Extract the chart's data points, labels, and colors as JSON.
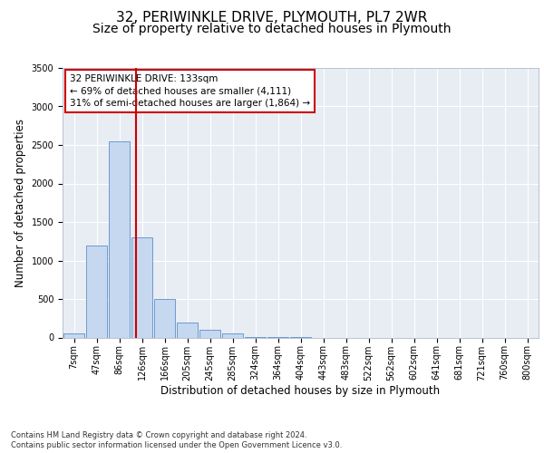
{
  "title": "32, PERIWINKLE DRIVE, PLYMOUTH, PL7 2WR",
  "subtitle": "Size of property relative to detached houses in Plymouth",
  "xlabel": "Distribution of detached houses by size in Plymouth",
  "ylabel": "Number of detached properties",
  "bar_categories": [
    "7sqm",
    "47sqm",
    "86sqm",
    "126sqm",
    "166sqm",
    "205sqm",
    "245sqm",
    "285sqm",
    "324sqm",
    "364sqm",
    "404sqm",
    "443sqm",
    "483sqm",
    "522sqm",
    "562sqm",
    "602sqm",
    "641sqm",
    "681sqm",
    "721sqm",
    "760sqm",
    "800sqm"
  ],
  "bar_values": [
    50,
    1200,
    2550,
    1300,
    500,
    200,
    100,
    50,
    5,
    5,
    5,
    0,
    0,
    0,
    0,
    0,
    0,
    0,
    0,
    0,
    0
  ],
  "bar_color": "#c5d8f0",
  "bar_edge_color": "#5b8fc9",
  "vline_color": "#cc0000",
  "annotation_title": "32 PERIWINKLE DRIVE: 133sqm",
  "annotation_line1": "← 69% of detached houses are smaller (4,111)",
  "annotation_line2": "31% of semi-detached houses are larger (1,864) →",
  "annotation_box_facecolor": "#ffffff",
  "annotation_box_edgecolor": "#cc0000",
  "ylim": [
    0,
    3500
  ],
  "yticks": [
    0,
    500,
    1000,
    1500,
    2000,
    2500,
    3000,
    3500
  ],
  "plot_bg_color": "#e8edf4",
  "footer_line1": "Contains HM Land Registry data © Crown copyright and database right 2024.",
  "footer_line2": "Contains public sector information licensed under the Open Government Licence v3.0.",
  "title_fontsize": 11,
  "subtitle_fontsize": 10,
  "axis_label_fontsize": 8.5,
  "tick_fontsize": 7,
  "annotation_fontsize": 7.5,
  "footer_fontsize": 6
}
